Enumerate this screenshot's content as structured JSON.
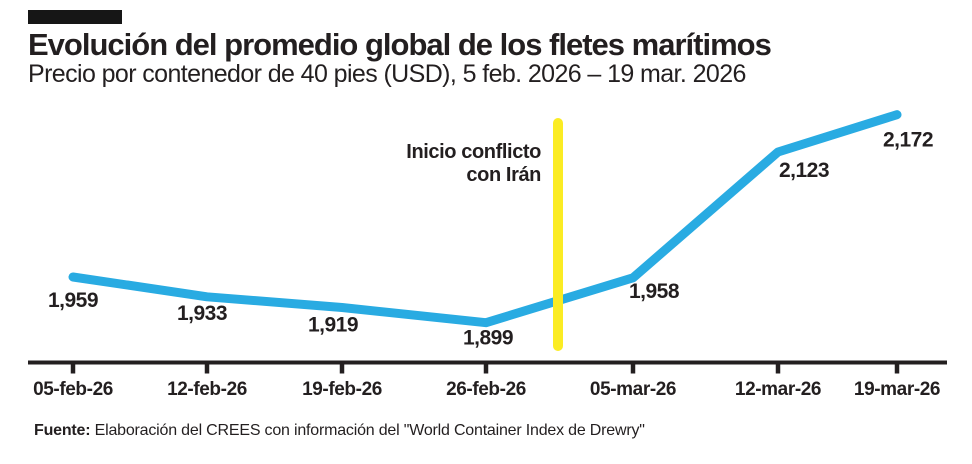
{
  "header": {
    "title": "Evolución del promedio global de los fletes marítimos",
    "subtitle": "Precio por contenedor de 40 pies (USD), 5 feb. 2026 – 19 mar. 2026"
  },
  "colors": {
    "line": "#29abe2",
    "event_marker": "#fbec23",
    "text": "#231f20",
    "axis": "#231f20",
    "kicker_bar": "#161616"
  },
  "chart_data": {
    "type": "line",
    "title": "Evolución del promedio global de los fletes marítimos",
    "subtitle": "Precio por contenedor de 40 pies (USD), 5 feb. 2026 – 19 mar. 2026",
    "categories": [
      "05-feb-26",
      "12-feb-26",
      "19-feb-26",
      "26-feb-26",
      "05-mar-26",
      "12-mar-26",
      "19-mar-26"
    ],
    "values": [
      1959,
      1933,
      1919,
      1899,
      1958,
      2123,
      2172
    ],
    "value_labels": [
      "1,959",
      "1,933",
      "1,919",
      "1,899",
      "1,958",
      "2,123",
      "2,172"
    ],
    "series": [
      {
        "name": "Precio por contenedor de 40 pies (USD)",
        "values": [
          1959,
          1933,
          1919,
          1899,
          1958,
          2123,
          2172
        ]
      }
    ],
    "annotation": {
      "label_lines": [
        "Inicio conflicto",
        "con Irán"
      ],
      "position_between": [
        "26-feb-26",
        "05-mar-26"
      ],
      "marker_color": "#fbec23"
    },
    "line_color": "#29abe2",
    "xlabel": "",
    "ylabel": "",
    "ylim": [
      1850,
      2230
    ],
    "grid": false,
    "legend": false,
    "y_axis_visible": false
  },
  "footer": {
    "source_label": "Fuente:",
    "source_text": " Elaboración del CREES con información del \"World Container Index de Drewry\""
  }
}
